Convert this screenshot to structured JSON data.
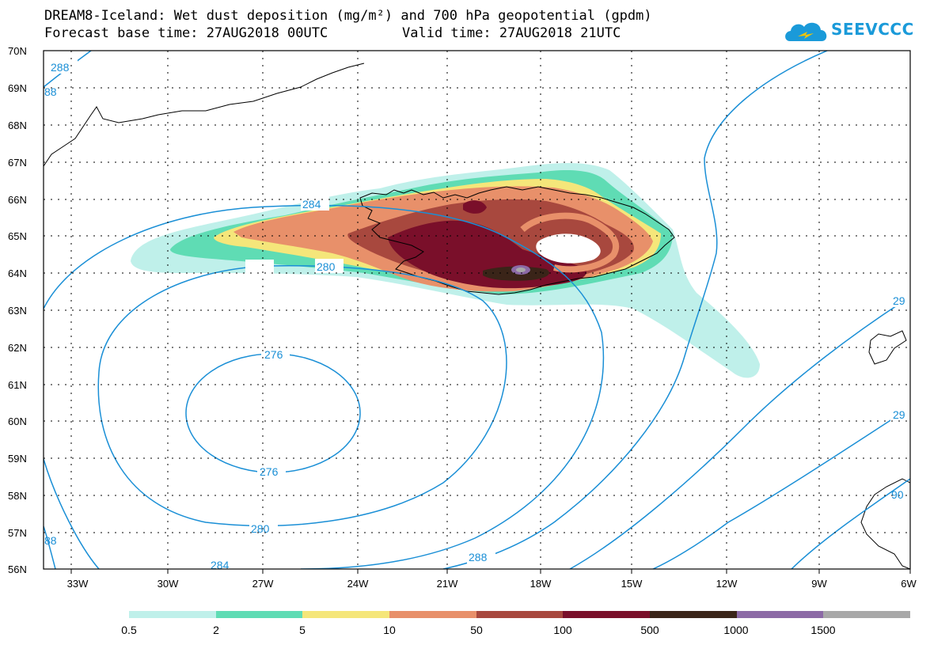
{
  "header": {
    "title_line1": "DREAM8-Iceland: Wet dust deposition (mg/m²) and 700 hPa geopotential (gpdm)",
    "forecast_base": "Forecast base time: 27AUG2018 00UTC",
    "valid_time": "Valid time: 27AUG2018 21UTC"
  },
  "logo": {
    "text": "SEEVCCC",
    "color": "#1a9ad9"
  },
  "axes": {
    "lat_labels": [
      "70N",
      "69N",
      "68N",
      "67N",
      "66N",
      "65N",
      "64N",
      "63N",
      "62N",
      "61N",
      "60N",
      "59N",
      "58N",
      "57N",
      "56N"
    ],
    "lon_labels": [
      "33W",
      "30W",
      "27W",
      "24W",
      "21W",
      "18W",
      "15W",
      "12W",
      "9W",
      "6W"
    ]
  },
  "contour_labels": {
    "c276a": "276",
    "c276b": "276",
    "c280a": "280",
    "c280b": "280",
    "c284a": "284",
    "c284b": "284",
    "c288a": "288",
    "c288b": "288",
    "c288c": "88",
    "c288d": "88",
    "c29a": "29",
    "c29b": "29",
    "c90": "90",
    "line_color": "#1a8fd6"
  },
  "legend": {
    "colors": [
      "#bff0ea",
      "#5fdcb4",
      "#f5e67a",
      "#e8906a",
      "#a8483e",
      "#7a0f2a",
      "#3a2418",
      "#8c6aa6",
      "#a8a8a8"
    ],
    "labels": [
      "0.5",
      "2",
      "5",
      "10",
      "50",
      "100",
      "500",
      "1000",
      "1500"
    ]
  }
}
